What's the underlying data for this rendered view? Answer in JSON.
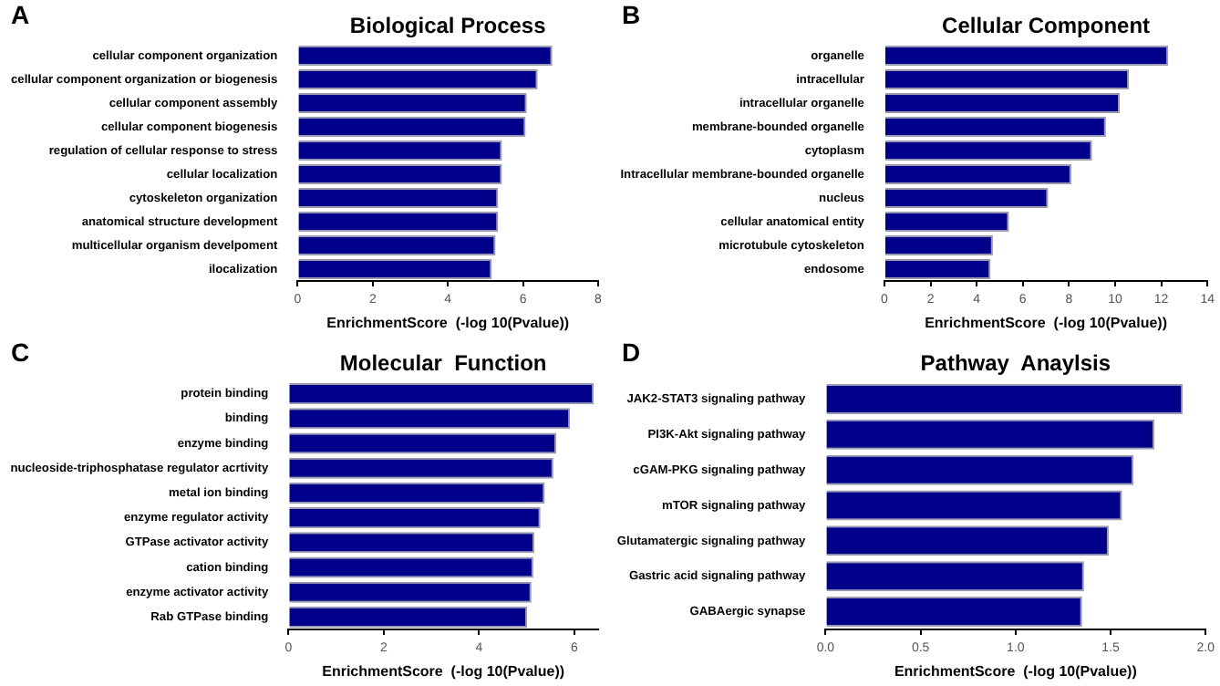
{
  "chart_data": [
    {
      "type": "bar",
      "orientation": "horizontal",
      "title": "Biological Process",
      "xlabel": "EnrichmentScore  (-log 10(Pvalue))",
      "annotations": [
        "A"
      ],
      "color": "#00008b",
      "xlim": [
        0,
        8
      ],
      "xticks": [
        0,
        2,
        4,
        6,
        8
      ],
      "categories": [
        "cellular component organization",
        "cellular component organization or biogenesis",
        "cellular component assembly",
        "cellular component biogenesis",
        "regulation of cellular response to stress",
        "cellular localization",
        "cytoskeleton organization",
        "anatomical structure development",
        "multicellular organism develpoment",
        "ilocalization"
      ],
      "values": [
        6.78,
        6.39,
        6.1,
        6.07,
        5.44,
        5.44,
        5.34,
        5.34,
        5.27,
        5.17
      ]
    },
    {
      "type": "bar",
      "orientation": "horizontal",
      "title": "Cellular Component",
      "xlabel": "EnrichmentScore  (-log 10(Pvalue))",
      "annotations": [
        "B"
      ],
      "color": "#00008b",
      "xlim": [
        0,
        14
      ],
      "xticks": [
        0,
        2,
        4,
        6,
        8,
        10,
        12,
        14
      ],
      "categories": [
        "organelle",
        "intracellular",
        "intracellular organelle",
        "membrane-bounded organelle",
        "cytoplasm",
        "Intracellular membrane-bounded organelle",
        "nucleus",
        "cellular anatomical entity",
        "microtubule cytoskeleton",
        "endosome"
      ],
      "values": [
        12.3,
        10.6,
        10.2,
        9.6,
        9.0,
        8.1,
        7.1,
        5.4,
        4.7,
        4.6
      ]
    },
    {
      "type": "bar",
      "orientation": "horizontal",
      "title": "Molecular  Function",
      "xlabel": "EnrichmentScore  (-log 10(Pvalue))",
      "annotations": [
        "C"
      ],
      "color": "#00008b",
      "xlim": [
        0,
        6.5
      ],
      "xticks": [
        0,
        2,
        4,
        6
      ],
      "categories": [
        "protein binding",
        "binding",
        "enzyme binding",
        "nucleoside-triphosphatase regulator acrtivity",
        "metal ion binding",
        "enzyme regulator activity",
        "GTPase activator activity",
        "cation binding",
        "enzyme activator activity",
        "Rab GTPase binding"
      ],
      "values": [
        6.41,
        5.91,
        5.62,
        5.56,
        5.38,
        5.29,
        5.16,
        5.14,
        5.1,
        5.01
      ]
    },
    {
      "type": "bar",
      "orientation": "horizontal",
      "title": "Pathway  Anaylsis",
      "xlabel": "EnrichmentScore  (-log 10(Pvalue))",
      "annotations": [
        "D"
      ],
      "color": "#00008b",
      "xlim": [
        0,
        2
      ],
      "xticks": [
        {
          "value": 0,
          "label": "0.0"
        },
        {
          "value": 0.5,
          "label": "0.5"
        },
        {
          "value": 1,
          "label": "1.0"
        },
        {
          "value": 1.5,
          "label": "1.5"
        },
        {
          "value": 2,
          "label": "2.0"
        }
      ],
      "categories": [
        "JAK2-STAT3 signaling pathway",
        "PI3K-Akt signaling pathway",
        "cGAM-PKG signaling pathway",
        "mTOR signaling pathway",
        "Glutamatergic signaling pathway",
        "Gastric acid signaling pathway",
        "GABAergic synapse"
      ],
      "values": [
        1.88,
        1.73,
        1.62,
        1.56,
        1.49,
        1.36,
        1.35
      ]
    }
  ]
}
